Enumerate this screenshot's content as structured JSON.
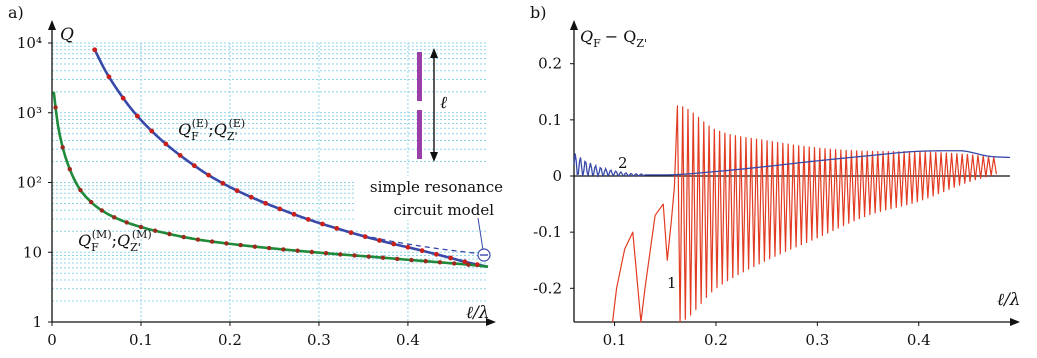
{
  "chart_data": [
    {
      "type": "line",
      "panel_label": "a)",
      "ylabel": "Q",
      "xlabel": "ℓ/λ",
      "xlim": [
        0,
        0.49
      ],
      "ylim": [
        1,
        10000
      ],
      "yscale": "log",
      "x_ticks": [
        "0",
        "0.1",
        "0.2",
        "0.3",
        "0.4"
      ],
      "y_ticks": [
        "1",
        "10",
        "10²",
        "10³",
        "10⁴"
      ],
      "grid": "dotted",
      "series": [
        {
          "name": "Q_F^(E); Q_Z'^(E)",
          "label_main": "Q",
          "label_sub": "F",
          "label_sup": "(E)",
          "label_sep": ";",
          "label_main2": "Q",
          "label_sub2": "Z'",
          "label_sup2": "(E)",
          "color": "#3949a8",
          "x": [
            0.048,
            0.06,
            0.075,
            0.09,
            0.11,
            0.13,
            0.15,
            0.175,
            0.2,
            0.23,
            0.26,
            0.29,
            0.32,
            0.35,
            0.38,
            0.41,
            0.44,
            0.47,
            0.49
          ],
          "y": [
            8000,
            4000,
            2000,
            1100,
            580,
            340,
            215,
            130,
            86,
            57,
            40,
            29,
            22,
            17,
            13.5,
            11,
            8.8,
            7,
            6.2
          ]
        },
        {
          "name": "Q_F^(M); Q_Z'^(M)",
          "label_main": "Q",
          "label_sub": "F",
          "label_sup": "(M)",
          "label_sep": ";",
          "label_main2": "Q",
          "label_sub2": "Z'",
          "label_sup2": "(M)",
          "color": "#1f8a3a",
          "x": [
            0.002,
            0.006,
            0.012,
            0.02,
            0.03,
            0.045,
            0.06,
            0.08,
            0.1,
            0.13,
            0.16,
            0.2,
            0.24,
            0.28,
            0.32,
            0.36,
            0.4,
            0.44,
            0.47,
            0.49
          ],
          "y": [
            2000,
            750,
            320,
            155,
            85,
            51,
            37,
            28,
            23,
            18.5,
            15.5,
            13.2,
            11.6,
            10.4,
            9.4,
            8.6,
            7.8,
            7.1,
            6.6,
            6.2
          ]
        },
        {
          "name": "simple resonance circuit model",
          "style": "dashed",
          "color": "#3949a8",
          "x": [
            0.32,
            0.35,
            0.38,
            0.41,
            0.44,
            0.47,
            0.485
          ],
          "y": [
            22,
            17.5,
            14.5,
            12.5,
            11,
            9.9,
            9.4
          ]
        }
      ],
      "markers_x_e": [
        0.048,
        0.064,
        0.08,
        0.096,
        0.112,
        0.128,
        0.144,
        0.16,
        0.176,
        0.192,
        0.208,
        0.224,
        0.24,
        0.256,
        0.272,
        0.288,
        0.304,
        0.32,
        0.336,
        0.352,
        0.368,
        0.384,
        0.4,
        0.416,
        0.432,
        0.448,
        0.464,
        0.478
      ],
      "markers_x_m": [
        0.004,
        0.012,
        0.02,
        0.032,
        0.044,
        0.056,
        0.07,
        0.084,
        0.1,
        0.116,
        0.132,
        0.148,
        0.164,
        0.18,
        0.196,
        0.212,
        0.228,
        0.244,
        0.26,
        0.276,
        0.292,
        0.308,
        0.324,
        0.34,
        0.356,
        0.372,
        0.388,
        0.404,
        0.42,
        0.436,
        0.452,
        0.468
      ],
      "annotations": {
        "model_line1": "simple resonance",
        "model_line2": "circuit model",
        "dipole_length": "ℓ"
      }
    },
    {
      "type": "line",
      "panel_label": "b)",
      "ylabel": "Q_F − Q_Z'",
      "ylabel_main": "Q",
      "ylabel_sub1": "F",
      "ylabel_minus": "− Q",
      "ylabel_sub2": "Z'",
      "xlabel": "ℓ/λ",
      "xlim": [
        0.06,
        0.49
      ],
      "ylim": [
        -0.26,
        0.26
      ],
      "x_ticks": [
        "0.1",
        "0.2",
        "0.3",
        "0.4"
      ],
      "y_ticks": [
        "0.2",
        "0.1",
        "0",
        "-0.1",
        "-0.2"
      ],
      "series": [
        {
          "name": "1",
          "color": "#e23b22",
          "description_points": {
            "x": [
              0.1,
              0.12,
              0.14,
              0.158,
              0.162,
              0.2,
              0.25,
              0.3,
              0.35,
              0.4,
              0.45,
              0.48
            ],
            "upper": [
              -0.26,
              -0.2,
              -0.08,
              -0.02,
              0.125,
              0.082,
              0.063,
              0.05,
              0.044,
              0.043,
              0.038,
              0.032
            ],
            "lower": [
              -0.26,
              -0.26,
              -0.18,
              -0.1,
              -0.26,
              -0.2,
              -0.15,
              -0.11,
              -0.07,
              -0.045,
              -0.01,
              0.005
            ]
          }
        },
        {
          "name": "2",
          "color": "#3949a8",
          "x": [
            0.06,
            0.08,
            0.1,
            0.12,
            0.15,
            0.2,
            0.25,
            0.3,
            0.35,
            0.4,
            0.44,
            0.47,
            0.49
          ],
          "y": [
            0.02,
            0.01,
            0.005,
            0.002,
            0.002,
            0.008,
            0.017,
            0.027,
            0.036,
            0.044,
            0.045,
            0.035,
            0.033
          ]
        }
      ],
      "curve_labels": [
        "1",
        "2"
      ]
    }
  ]
}
